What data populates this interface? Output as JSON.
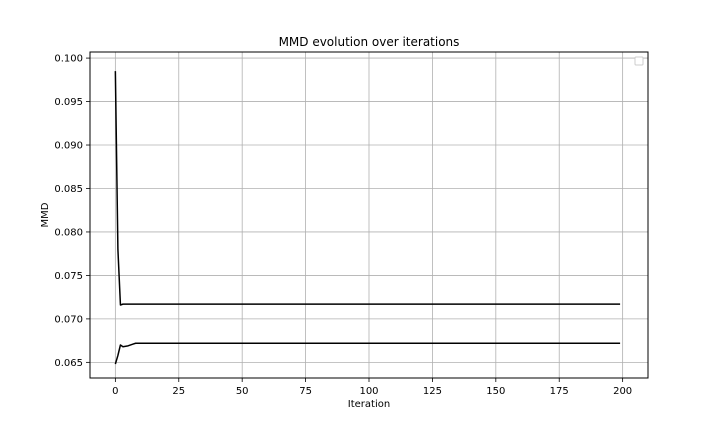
{
  "chart_data": {
    "type": "line",
    "title": "MMD evolution over iterations",
    "xlabel": "Iteration",
    "ylabel": "MMD",
    "xlim": [
      -10,
      210
    ],
    "ylim": [
      0.0632,
      0.1007
    ],
    "xticks": [
      0,
      25,
      50,
      75,
      100,
      125,
      150,
      175,
      200
    ],
    "xtick_labels": [
      "0",
      "25",
      "50",
      "75",
      "100",
      "125",
      "150",
      "175",
      "200"
    ],
    "yticks": [
      0.065,
      0.07,
      0.075,
      0.08,
      0.085,
      0.09,
      0.095,
      0.1
    ],
    "ytick_labels": [
      "0.065",
      "0.070",
      "0.075",
      "0.080",
      "0.085",
      "0.090",
      "0.095",
      "0.100"
    ],
    "grid": true,
    "legend": {
      "location": "top-right",
      "entries": []
    },
    "series": [
      {
        "color": "#000000",
        "points": [
          [
            0,
            0.0985
          ],
          [
            1,
            0.078
          ],
          [
            2,
            0.0716
          ],
          [
            3,
            0.0717
          ],
          [
            4,
            0.0717
          ],
          [
            10,
            0.0717
          ],
          [
            50,
            0.0717
          ],
          [
            100,
            0.0717
          ],
          [
            105,
            0.0717
          ],
          [
            150,
            0.0717
          ],
          [
            199,
            0.0717
          ]
        ]
      },
      {
        "color": "#000000",
        "points": [
          [
            0,
            0.0648
          ],
          [
            1,
            0.0658
          ],
          [
            2,
            0.067
          ],
          [
            3,
            0.0668
          ],
          [
            5,
            0.0669
          ],
          [
            7,
            0.0671
          ],
          [
            8,
            0.0672
          ],
          [
            10,
            0.0672
          ],
          [
            50,
            0.0672
          ],
          [
            100,
            0.0672
          ],
          [
            150,
            0.0672
          ],
          [
            199,
            0.0672
          ]
        ]
      }
    ]
  }
}
